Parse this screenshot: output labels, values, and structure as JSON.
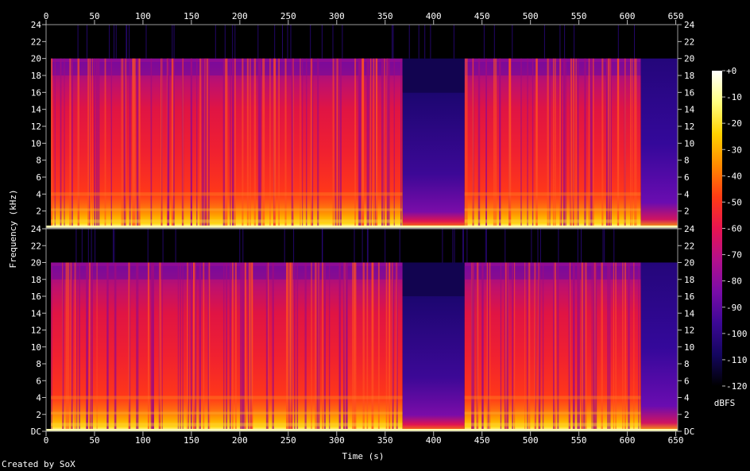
{
  "credit": "Created by SoX",
  "chart_data": {
    "type": "heatmap",
    "title": "",
    "xlabel": "Time (s)",
    "ylabel": "Frequency (kHz)",
    "duration_s": 652,
    "x_ticks": [
      0,
      50,
      100,
      150,
      200,
      250,
      300,
      350,
      400,
      450,
      500,
      550,
      600,
      650
    ],
    "y_ticks": [
      {
        "value": 0,
        "label": "DC"
      },
      {
        "value": 2,
        "label": "2"
      },
      {
        "value": 4,
        "label": "4"
      },
      {
        "value": 6,
        "label": "6"
      },
      {
        "value": 8,
        "label": "8"
      },
      {
        "value": 10,
        "label": "10"
      },
      {
        "value": 12,
        "label": "12"
      },
      {
        "value": 14,
        "label": "14"
      },
      {
        "value": 16,
        "label": "16"
      },
      {
        "value": 18,
        "label": "18"
      },
      {
        "value": 20,
        "label": "20"
      },
      {
        "value": 22,
        "label": "22"
      },
      {
        "value": 24,
        "label": "24"
      }
    ],
    "ylim_khz": [
      0,
      24
    ],
    "channels": 2,
    "colorbar": {
      "label": "dBFS",
      "range": [
        -120,
        0
      ],
      "ticks": [
        "+0",
        "-10",
        "-20",
        "-30",
        "-40",
        "-50",
        "-60",
        "-70",
        "-80",
        "-90",
        "-100",
        "-110",
        "-120"
      ],
      "colors": [
        "#ffffff",
        "#ffff80",
        "#ffd200",
        "#ff8a00",
        "#ff3c14",
        "#e81450",
        "#b4108c",
        "#7a0ca8",
        "#3c0896",
        "#140660",
        "#000000"
      ]
    },
    "segments": [
      {
        "start_s": 0,
        "end_s": 5,
        "kind": "silence"
      },
      {
        "start_s": 5,
        "end_s": 368,
        "kind": "music",
        "cutoff_khz": 20
      },
      {
        "start_s": 368,
        "end_s": 432,
        "kind": "quiet",
        "cutoff_khz": 16
      },
      {
        "start_s": 432,
        "end_s": 614,
        "kind": "music",
        "cutoff_khz": 20
      },
      {
        "start_s": 614,
        "end_s": 652,
        "kind": "fade",
        "cutoff_khz": 20
      }
    ]
  }
}
